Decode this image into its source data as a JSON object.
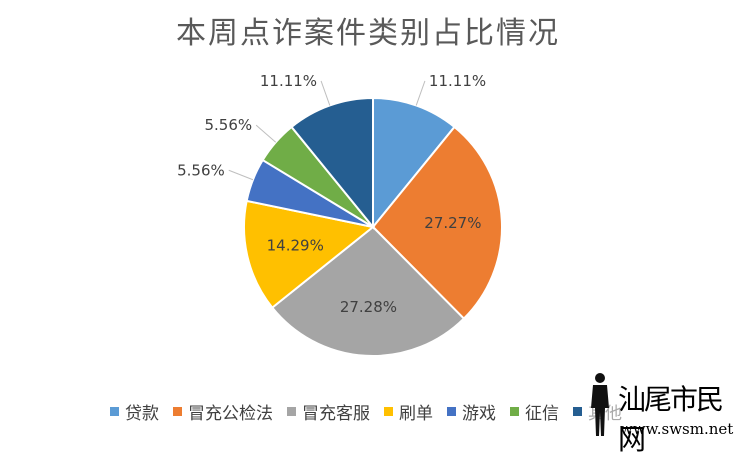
{
  "chart_data": {
    "type": "pie",
    "title": "本周点诈案件类别占比情况",
    "slices": [
      {
        "label": "贷款",
        "value": 11.11,
        "display": "11.11%",
        "color": "#5B9BD5"
      },
      {
        "label": "冒充公检法",
        "value": 27.27,
        "display": "27.27%",
        "color": "#ED7D31"
      },
      {
        "label": "冒充客服",
        "value": 27.28,
        "display": "27.28%",
        "color": "#A5A5A5"
      },
      {
        "label": "刷单",
        "value": 14.29,
        "display": "14.29%",
        "color": "#FFC000"
      },
      {
        "label": "游戏",
        "value": 5.56,
        "display": "5.56%",
        "color": "#4472C4"
      },
      {
        "label": "征信",
        "value": 5.56,
        "display": "5.56%",
        "color": "#70AD47"
      },
      {
        "label": "其他",
        "value": 11.11,
        "display": "11.11%",
        "color": "#255E91"
      }
    ],
    "legend_position": "bottom"
  },
  "watermark": {
    "text": "汕尾市民网",
    "url": "www.swsm.net"
  }
}
